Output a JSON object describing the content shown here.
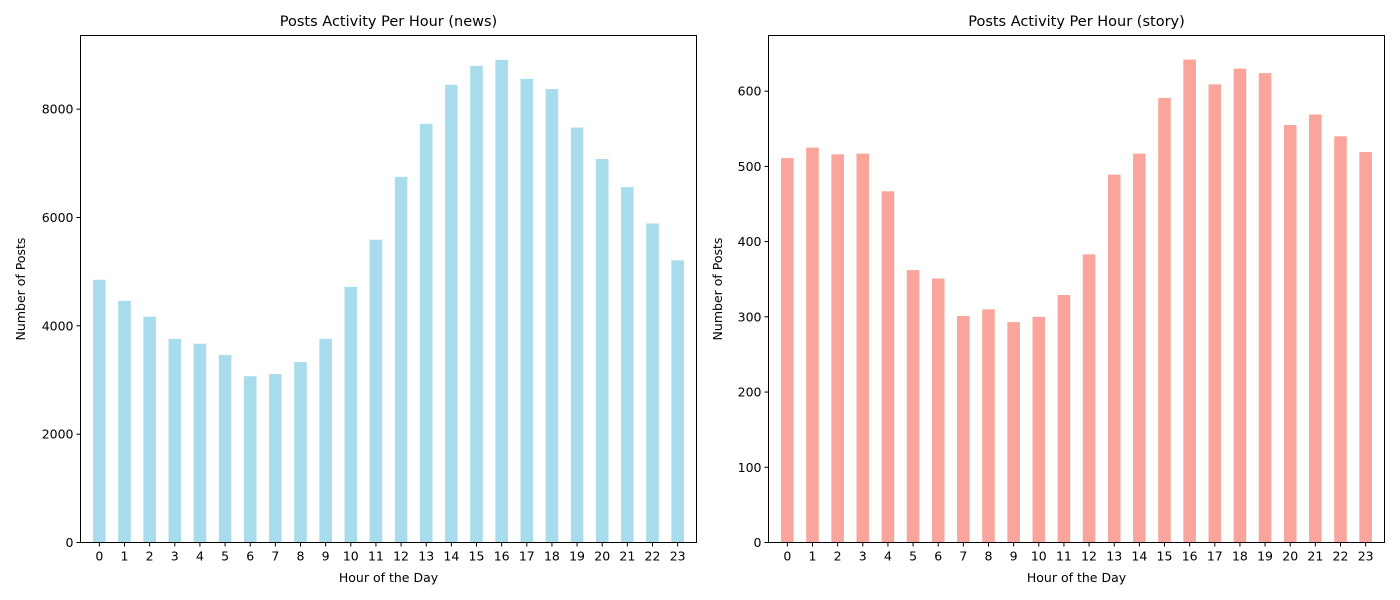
{
  "chart_data": [
    {
      "type": "bar",
      "title": "Posts Activity Per Hour (news)",
      "xlabel": "Hour of the Day",
      "ylabel": "Number of Posts",
      "categories": [
        "0",
        "1",
        "2",
        "3",
        "4",
        "5",
        "6",
        "7",
        "8",
        "9",
        "10",
        "11",
        "12",
        "13",
        "14",
        "15",
        "16",
        "17",
        "18",
        "19",
        "20",
        "21",
        "22",
        "23"
      ],
      "values": [
        4850,
        4460,
        4170,
        3760,
        3670,
        3460,
        3070,
        3110,
        3330,
        3760,
        4720,
        5590,
        6750,
        7730,
        8450,
        8800,
        8910,
        8560,
        8370,
        7660,
        7080,
        6560,
        5890,
        5210
      ],
      "yticks": [
        0,
        2000,
        4000,
        6000,
        8000
      ],
      "ylim": [
        0,
        9360
      ],
      "color": "#a8dced",
      "grid": false,
      "legend": "none"
    },
    {
      "type": "bar",
      "title": "Posts Activity Per Hour (story)",
      "xlabel": "Hour of the Day",
      "ylabel": "Number of Posts",
      "categories": [
        "0",
        "1",
        "2",
        "3",
        "4",
        "5",
        "6",
        "7",
        "8",
        "9",
        "10",
        "11",
        "12",
        "13",
        "14",
        "15",
        "16",
        "17",
        "18",
        "19",
        "20",
        "21",
        "22",
        "23"
      ],
      "values": [
        511,
        525,
        516,
        517,
        467,
        362,
        351,
        301,
        310,
        293,
        300,
        329,
        383,
        489,
        517,
        591,
        642,
        609,
        630,
        624,
        555,
        569,
        540,
        519
      ],
      "yticks": [
        0,
        100,
        200,
        300,
        400,
        500,
        600
      ],
      "ylim": [
        0,
        674
      ],
      "color": "#f9a59b",
      "grid": false,
      "legend": "none"
    }
  ]
}
